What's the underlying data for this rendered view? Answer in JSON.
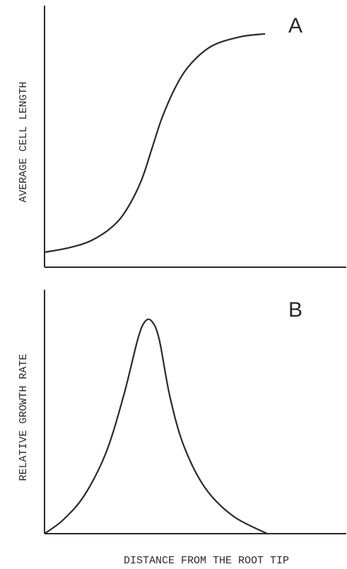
{
  "chart_data": [
    {
      "type": "line",
      "label": "A",
      "ylabel": "AVERAGE CELL LENGTH",
      "x": [
        0,
        8.7,
        15.7,
        22.7,
        27.4,
        32.1,
        35.6,
        39.1,
        43.8,
        48.5,
        55.5,
        64.9,
        73.1
      ],
      "series": [
        {
          "color": "#2a2a2a",
          "values": [
            5.7,
            7.6,
            10.3,
            15.7,
            22.4,
            33.2,
            45.4,
            57.6,
            69.7,
            77.8,
            84.6,
            88.1,
            89.2
          ]
        }
      ],
      "xlim": [
        0,
        100
      ],
      "ylim": [
        0,
        100
      ]
    },
    {
      "type": "line",
      "label": "B",
      "ylabel": "RELATIVE GROWTH RATE",
      "xlabel": "DISTANCE FROM THE ROOT TIP",
      "x": [
        0,
        6.3,
        13.3,
        20.4,
        26.2,
        30.9,
        33.3,
        35.6,
        38.0,
        41.5,
        46.1,
        53.2,
        62.5,
        73.8
      ],
      "series": [
        {
          "color": "#2a2a2a",
          "values": [
            0,
            5.8,
            15.9,
            33.3,
            56.5,
            79.7,
            87.0,
            87.0,
            79.7,
            56.5,
            36.2,
            18.8,
            7.2,
            0
          ]
        }
      ],
      "xlim": [
        0,
        100
      ],
      "ylim": [
        0,
        100
      ]
    }
  ]
}
